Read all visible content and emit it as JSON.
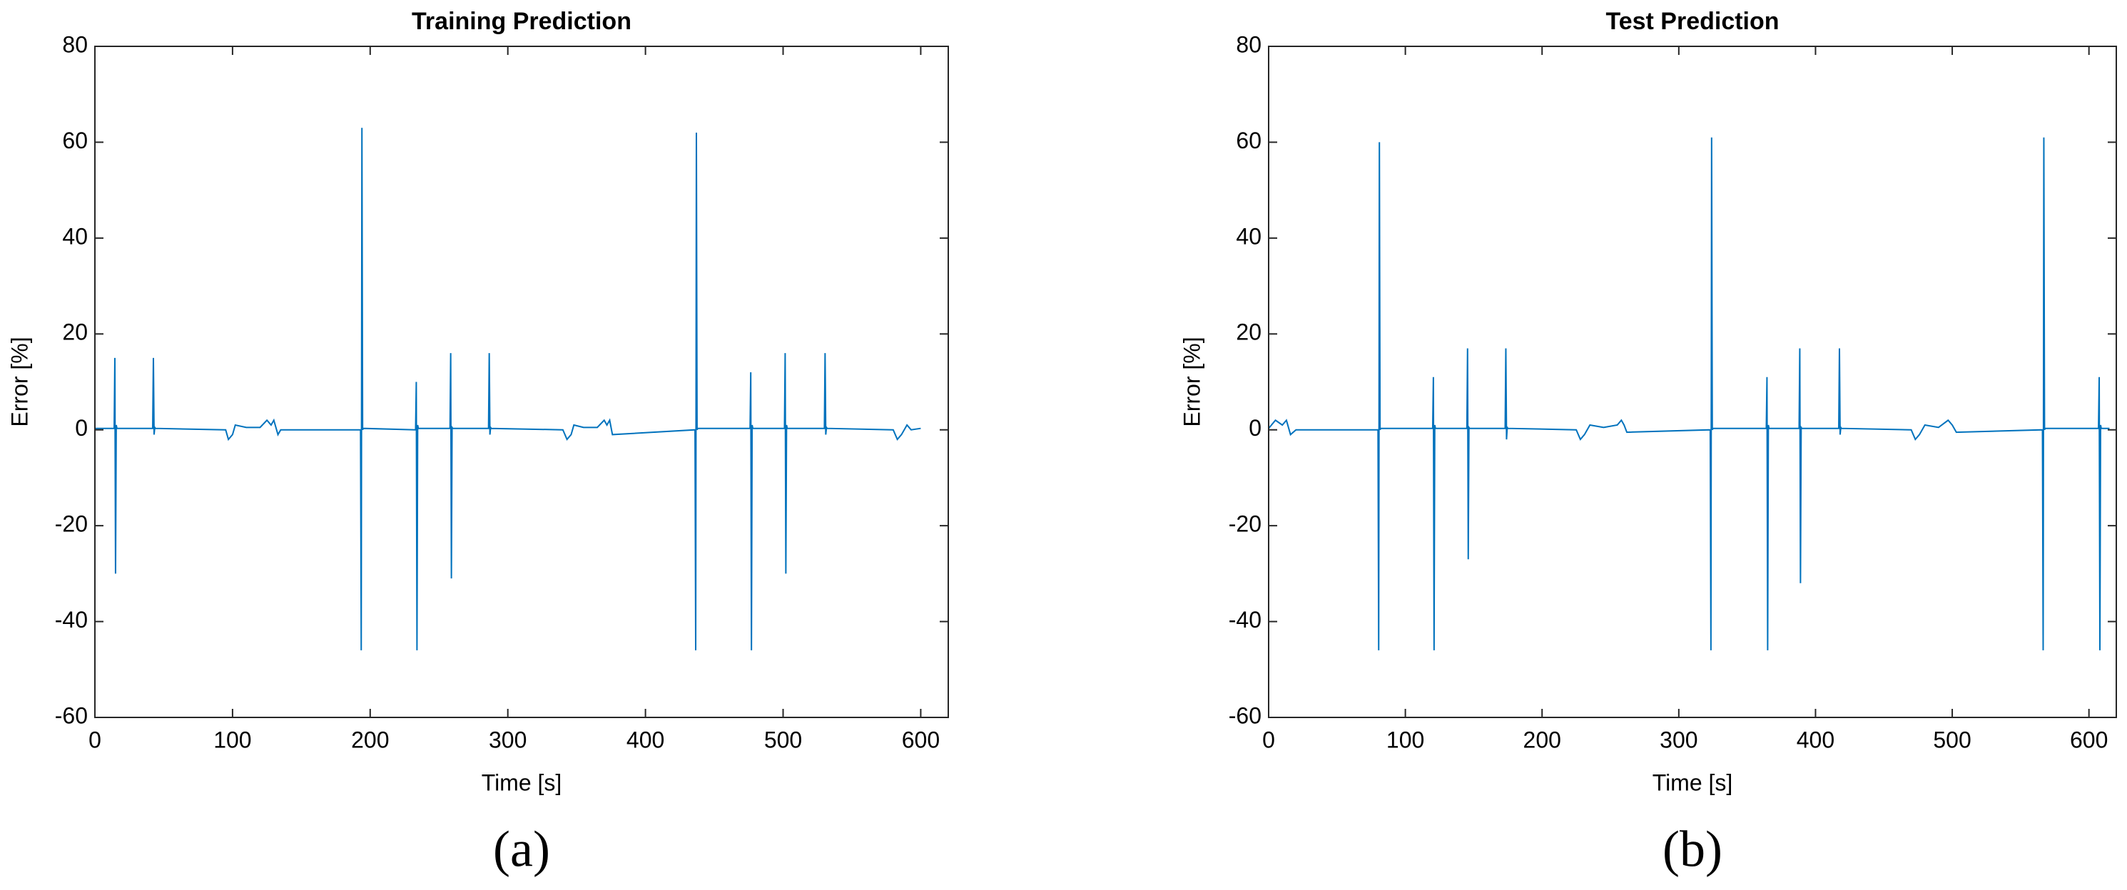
{
  "chart_data": [
    {
      "type": "line",
      "title": "Training Prediction",
      "panel_label": "(a)",
      "x_label": "Time [s]",
      "y_label": "Error [%]",
      "xlim": [
        0,
        620
      ],
      "ylim": [
        -60,
        80
      ],
      "xticks": [
        0,
        100,
        200,
        300,
        400,
        500,
        600
      ],
      "yticks": [
        -60,
        -40,
        -20,
        0,
        20,
        40,
        60,
        80
      ],
      "series": [
        {
          "color": "#0072bd",
          "x": [
            0,
            14,
            14.5,
            15,
            15.5,
            16,
            42,
            42.5,
            43,
            43.5,
            44,
            95,
            97,
            100,
            102,
            110,
            120,
            125,
            128,
            130,
            133,
            135,
            193,
            193.5,
            194,
            194.5,
            195,
            233,
            233.5,
            234,
            234.5,
            235,
            258,
            258.5,
            259,
            259.5,
            260,
            286,
            286.5,
            287,
            287.5,
            288,
            340,
            343,
            346,
            348,
            355,
            365,
            370,
            372,
            374,
            376,
            436,
            436.5,
            437,
            437.5,
            438,
            476,
            476.5,
            477,
            477.5,
            478,
            501,
            501.5,
            502,
            502.5,
            503,
            530,
            530.5,
            531,
            531.5,
            532,
            580,
            583,
            586,
            590,
            593,
            600
          ],
          "values": [
            0.3,
            0.3,
            15,
            -30,
            1,
            0.3,
            0.3,
            15,
            -1,
            0.5,
            0.3,
            0,
            -2,
            -1,
            1,
            0.5,
            0.5,
            2,
            1,
            2,
            -1,
            0,
            0,
            -46,
            63,
            0,
            0.3,
            0,
            10,
            -46,
            1,
            0.3,
            0.3,
            16,
            -31,
            0.5,
            0.3,
            0.3,
            16,
            -1,
            0.5,
            0.3,
            0,
            -2,
            -1,
            1,
            0.5,
            0.5,
            2,
            1,
            2,
            -1,
            0,
            -46,
            62,
            0,
            0.3,
            0.3,
            12,
            -46,
            1,
            0.3,
            0.3,
            16,
            -30,
            1,
            0.3,
            0.3,
            16,
            -1,
            0.5,
            0.3,
            0,
            -2,
            -1,
            1,
            0,
            0.3
          ]
        }
      ]
    },
    {
      "type": "line",
      "title": "Test Prediction",
      "panel_label": "(b)",
      "x_label": "Time [s]",
      "y_label": "Error [%]",
      "xlim": [
        0,
        620
      ],
      "ylim": [
        -60,
        80
      ],
      "xticks": [
        0,
        100,
        200,
        300,
        400,
        500,
        600
      ],
      "yticks": [
        -60,
        -40,
        -20,
        0,
        20,
        40,
        60,
        80
      ],
      "series": [
        {
          "color": "#0072bd",
          "x": [
            0,
            5,
            10,
            13,
            16,
            20,
            80,
            80.5,
            81,
            81.5,
            82,
            120,
            120.5,
            121,
            121.5,
            122,
            145,
            145.5,
            146,
            146.5,
            147,
            173,
            173.5,
            174,
            174.5,
            175,
            225,
            228,
            231,
            235,
            245,
            255,
            258,
            260,
            262,
            323,
            323.5,
            324,
            324.5,
            325,
            364,
            364.5,
            365,
            365.5,
            366,
            388,
            388.5,
            389,
            389.5,
            390,
            417,
            417.5,
            418,
            418.5,
            419,
            470,
            473,
            476,
            480,
            490,
            497,
            500,
            503,
            566,
            566.5,
            567,
            567.5,
            568,
            607,
            607.5,
            608,
            608.5,
            609,
            615
          ],
          "values": [
            0.3,
            2,
            1,
            2,
            -1,
            0,
            0,
            -46,
            60,
            0,
            0.3,
            0.3,
            11,
            -46,
            1,
            0.3,
            0.3,
            17,
            -27,
            0.5,
            0.3,
            0.3,
            17,
            -2,
            0.5,
            0.3,
            0,
            -2,
            -1,
            1,
            0.5,
            1,
            2,
            1,
            -0.5,
            0,
            -46,
            61,
            0,
            0.3,
            0.3,
            11,
            -46,
            1,
            0.3,
            0.3,
            17,
            -32,
            0.5,
            0.3,
            0.3,
            17,
            -1,
            0.5,
            0.3,
            0,
            -2,
            -1,
            1,
            0.5,
            2,
            1,
            -0.5,
            0,
            -46,
            61,
            0,
            0.3,
            0.3,
            11,
            -46,
            1,
            0.3,
            0.3
          ]
        }
      ]
    }
  ]
}
